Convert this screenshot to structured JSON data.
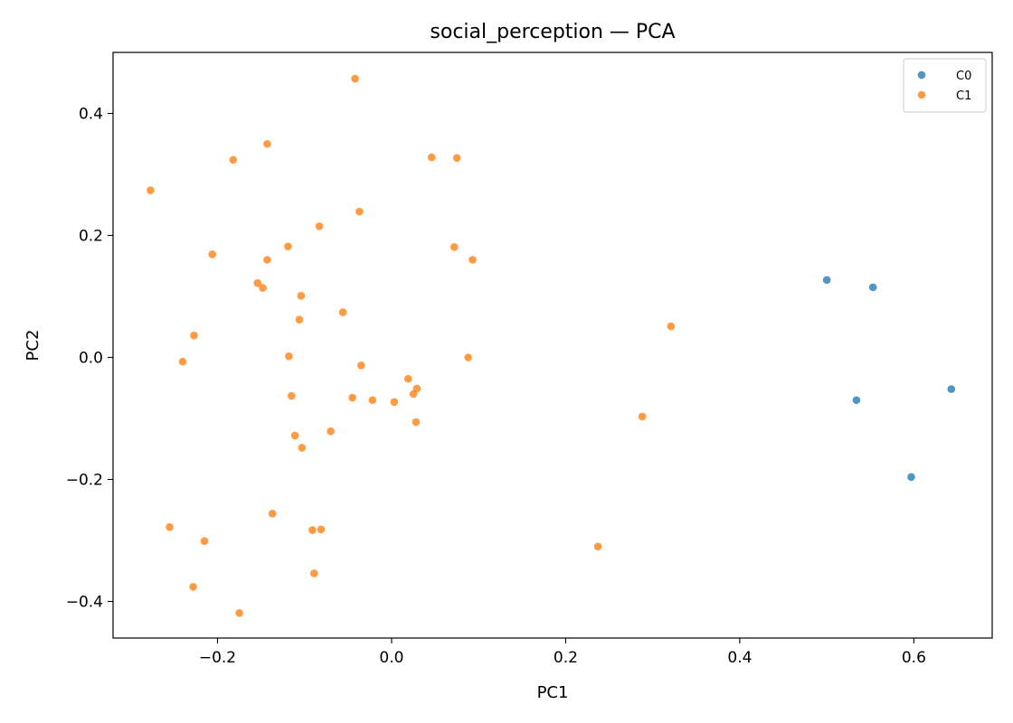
{
  "chart_data": {
    "type": "scatter",
    "title": "social_perception — PCA",
    "xlabel": "PC1",
    "ylabel": "PC2",
    "xlim": [
      -0.32,
      0.69
    ],
    "ylim": [
      -0.46,
      0.5
    ],
    "x_ticks": [
      -0.2,
      0.0,
      0.2,
      0.4,
      0.6
    ],
    "x_tick_labels": [
      "−0.2",
      "0.0",
      "0.2",
      "0.4",
      "0.6"
    ],
    "y_ticks": [
      -0.4,
      -0.2,
      0.0,
      0.2,
      0.4
    ],
    "y_tick_labels": [
      "−0.4",
      "−0.2",
      "0.0",
      "0.2",
      "0.4"
    ],
    "grid": false,
    "legend_position": "top-right",
    "series": [
      {
        "name": "C0",
        "color": "#1f77b4",
        "points": [
          {
            "x": 0.5,
            "y": 0.127
          },
          {
            "x": 0.553,
            "y": 0.115
          },
          {
            "x": 0.534,
            "y": -0.07
          },
          {
            "x": 0.643,
            "y": -0.052
          },
          {
            "x": 0.597,
            "y": -0.196
          }
        ]
      },
      {
        "name": "C1",
        "color": "#ff7f0e",
        "points": [
          {
            "x": -0.042,
            "y": 0.457
          },
          {
            "x": -0.143,
            "y": 0.35
          },
          {
            "x": -0.182,
            "y": 0.324
          },
          {
            "x": 0.046,
            "y": 0.328
          },
          {
            "x": 0.075,
            "y": 0.327
          },
          {
            "x": -0.277,
            "y": 0.274
          },
          {
            "x": -0.037,
            "y": 0.239
          },
          {
            "x": -0.083,
            "y": 0.215
          },
          {
            "x": -0.206,
            "y": 0.169
          },
          {
            "x": -0.119,
            "y": 0.182
          },
          {
            "x": 0.072,
            "y": 0.181
          },
          {
            "x": -0.143,
            "y": 0.16
          },
          {
            "x": 0.093,
            "y": 0.16
          },
          {
            "x": -0.154,
            "y": 0.122
          },
          {
            "x": -0.148,
            "y": 0.114
          },
          {
            "x": -0.104,
            "y": 0.101
          },
          {
            "x": -0.056,
            "y": 0.074
          },
          {
            "x": -0.106,
            "y": 0.062
          },
          {
            "x": 0.321,
            "y": 0.051
          },
          {
            "x": -0.227,
            "y": 0.036
          },
          {
            "x": -0.24,
            "y": -0.007
          },
          {
            "x": -0.118,
            "y": 0.002
          },
          {
            "x": 0.088,
            "y": 0.0
          },
          {
            "x": -0.035,
            "y": -0.013
          },
          {
            "x": 0.019,
            "y": -0.035
          },
          {
            "x": 0.029,
            "y": -0.051
          },
          {
            "x": 0.025,
            "y": -0.06
          },
          {
            "x": -0.115,
            "y": -0.063
          },
          {
            "x": -0.045,
            "y": -0.066
          },
          {
            "x": -0.022,
            "y": -0.07
          },
          {
            "x": 0.003,
            "y": -0.073
          },
          {
            "x": 0.288,
            "y": -0.097
          },
          {
            "x": 0.028,
            "y": -0.106
          },
          {
            "x": -0.07,
            "y": -0.121
          },
          {
            "x": -0.111,
            "y": -0.128
          },
          {
            "x": -0.103,
            "y": -0.148
          },
          {
            "x": -0.137,
            "y": -0.256
          },
          {
            "x": -0.255,
            "y": -0.278
          },
          {
            "x": -0.091,
            "y": -0.283
          },
          {
            "x": -0.081,
            "y": -0.282
          },
          {
            "x": -0.215,
            "y": -0.301
          },
          {
            "x": 0.237,
            "y": -0.31
          },
          {
            "x": -0.089,
            "y": -0.354
          },
          {
            "x": -0.228,
            "y": -0.376
          },
          {
            "x": -0.175,
            "y": -0.419
          }
        ]
      }
    ]
  }
}
